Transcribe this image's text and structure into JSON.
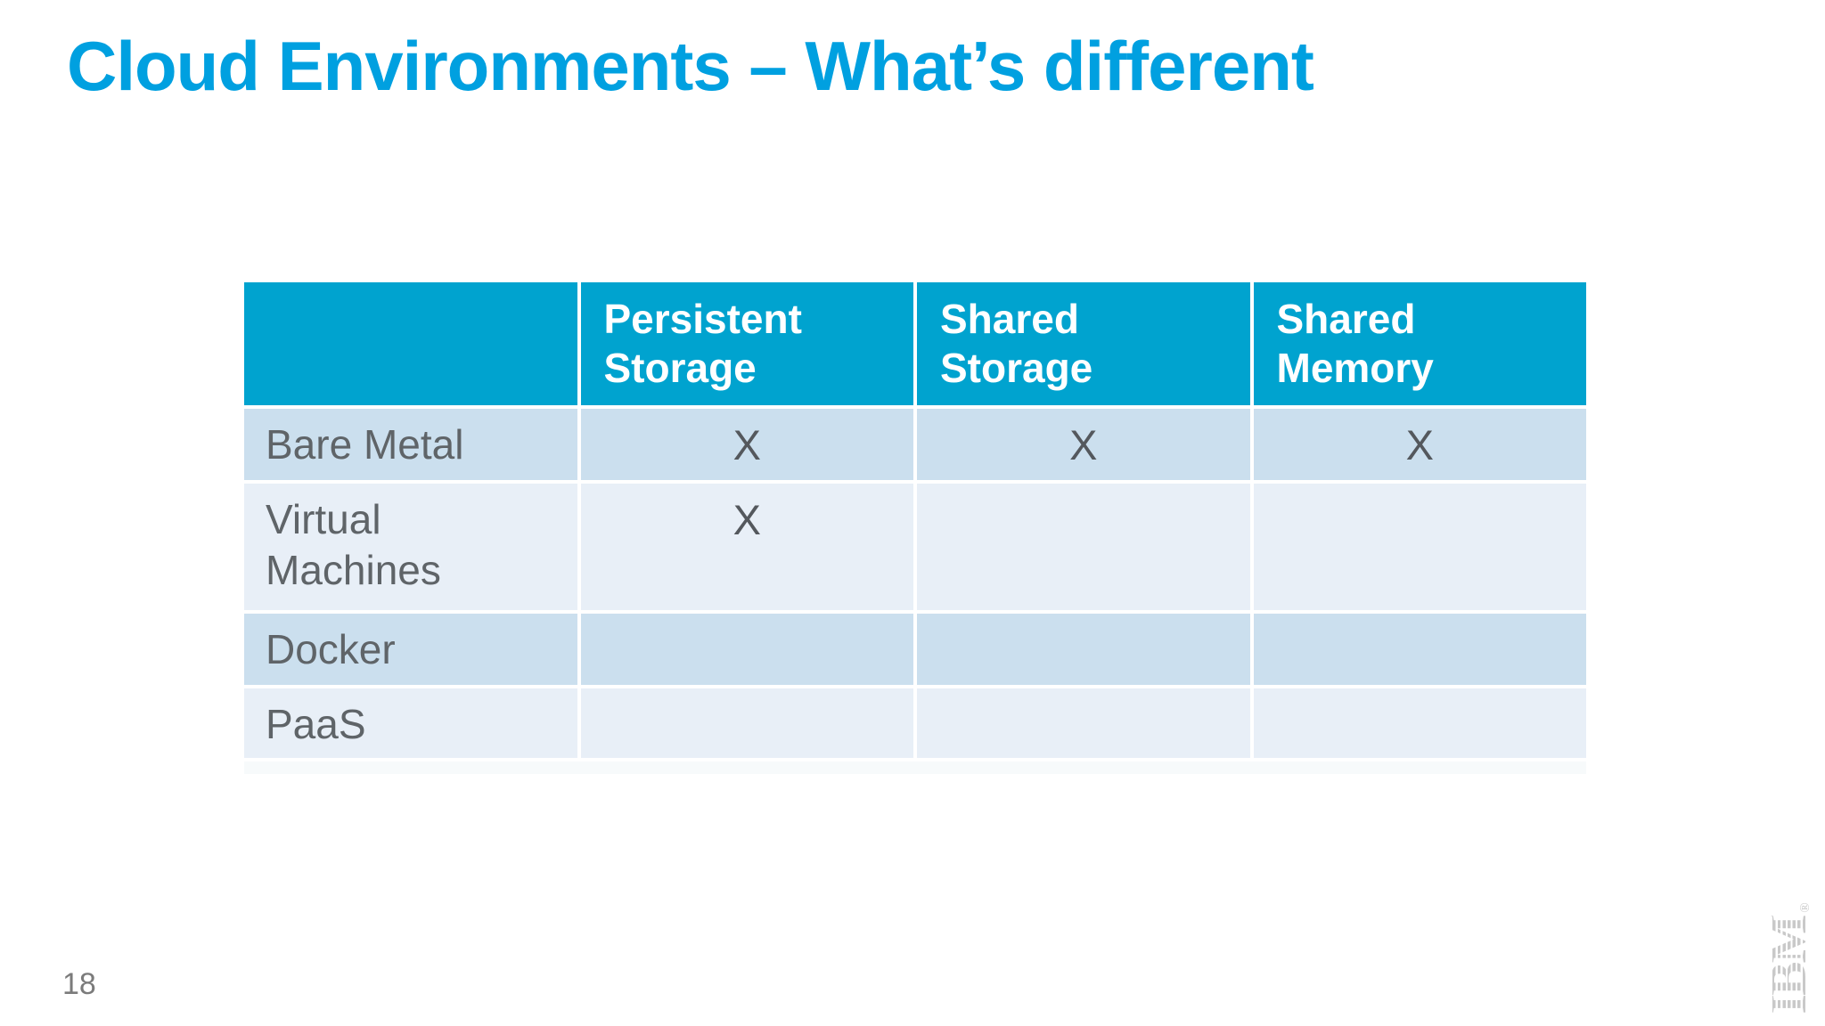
{
  "title": "Cloud Environments – What’s different",
  "page_number": "18",
  "footer_logo": {
    "word": "IBM",
    "registered": "®"
  },
  "colors": {
    "title_accent": "#00A0E0",
    "header_bg": "#00A3CF",
    "band_dark": "#CBDFEE",
    "band_light": "#E8EFF7",
    "body_text": "#5F6468",
    "mark_text": "#54585D",
    "page_gray": "#7B7B7B",
    "logo_gray": "#C9C9C9"
  },
  "table": {
    "columns": [
      "",
      "Persistent Storage",
      "Shared Storage",
      "Shared Memory"
    ],
    "rows": [
      {
        "label": "Bare Metal",
        "cells": [
          "X",
          "X",
          "X"
        ]
      },
      {
        "label": "Virtual Machines",
        "cells": [
          "X",
          "",
          ""
        ]
      },
      {
        "label": "Docker",
        "cells": [
          "",
          "",
          ""
        ]
      },
      {
        "label": "PaaS",
        "cells": [
          "",
          "",
          ""
        ]
      }
    ]
  }
}
